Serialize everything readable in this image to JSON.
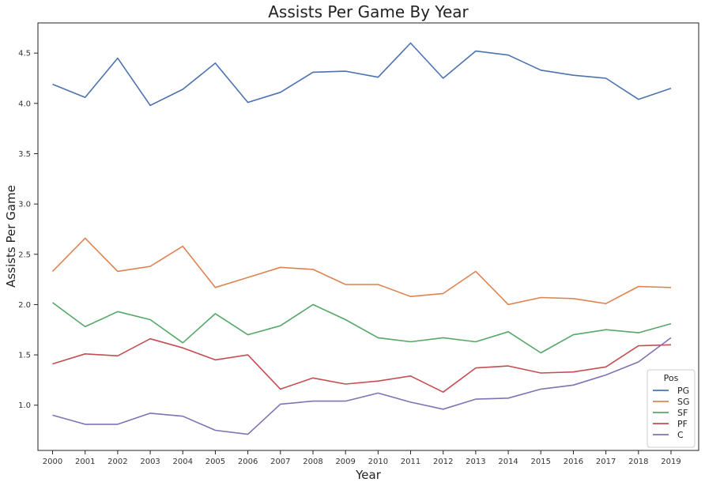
{
  "chart_data": {
    "type": "line",
    "title": "Assists Per Game By Year",
    "xlabel": "Year",
    "ylabel": "Assists Per Game",
    "x": [
      2000,
      2001,
      2002,
      2003,
      2004,
      2005,
      2006,
      2007,
      2008,
      2009,
      2010,
      2011,
      2012,
      2013,
      2014,
      2015,
      2016,
      2017,
      2018,
      2019
    ],
    "xlim": [
      1999.55,
      2019.85
    ],
    "ylim": [
      0.55,
      4.8
    ],
    "yticks": [
      1.0,
      1.5,
      2.0,
      2.5,
      3.0,
      3.5,
      4.0,
      4.5
    ],
    "grid": false,
    "legend": {
      "title": "Pos",
      "position": "bottom-right"
    },
    "series": [
      {
        "name": "PG",
        "color": "#4c72b0",
        "values": [
          4.19,
          4.06,
          4.45,
          3.98,
          4.14,
          4.4,
          4.01,
          4.11,
          4.31,
          4.32,
          4.26,
          4.6,
          4.25,
          4.52,
          4.48,
          4.33,
          4.28,
          4.25,
          4.04,
          4.15
        ]
      },
      {
        "name": "SG",
        "color": "#dd8452",
        "values": [
          2.33,
          2.66,
          2.33,
          2.38,
          2.58,
          2.17,
          2.27,
          2.37,
          2.35,
          2.2,
          2.2,
          2.08,
          2.11,
          2.33,
          2.0,
          2.07,
          2.06,
          2.01,
          2.18,
          2.17
        ]
      },
      {
        "name": "SF",
        "color": "#55a868",
        "values": [
          2.02,
          1.78,
          1.93,
          1.85,
          1.62,
          1.91,
          1.7,
          1.79,
          2.0,
          1.85,
          1.67,
          1.63,
          1.67,
          1.63,
          1.73,
          1.52,
          1.7,
          1.75,
          1.72,
          1.81
        ]
      },
      {
        "name": "PF",
        "color": "#c44e52",
        "values": [
          1.41,
          1.51,
          1.49,
          1.66,
          1.57,
          1.45,
          1.5,
          1.16,
          1.27,
          1.21,
          1.24,
          1.29,
          1.13,
          1.37,
          1.39,
          1.32,
          1.33,
          1.38,
          1.59,
          1.6
        ]
      },
      {
        "name": "C",
        "color": "#8172b3",
        "values": [
          0.9,
          0.81,
          0.81,
          0.92,
          0.89,
          0.75,
          0.71,
          1.01,
          1.04,
          1.04,
          1.12,
          1.03,
          0.96,
          1.06,
          1.07,
          1.16,
          1.2,
          1.3,
          1.43,
          1.67
        ]
      }
    ]
  }
}
